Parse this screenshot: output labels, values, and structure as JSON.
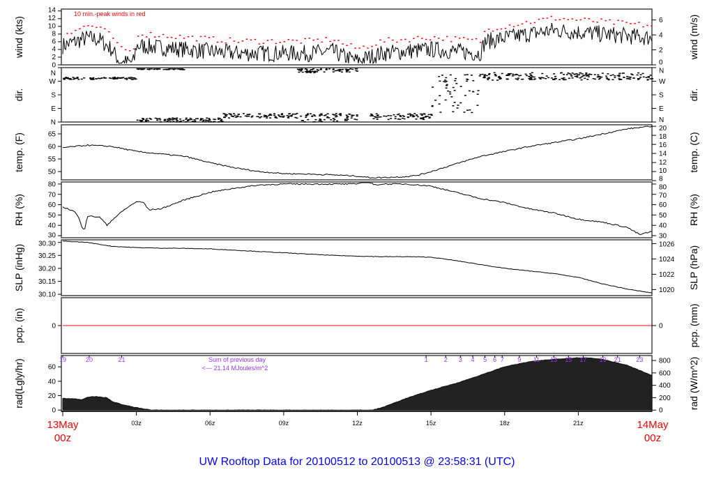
{
  "title": "UW Rooftop Data for 20100512  to  20100513 @ 23:58:31  (UTC)",
  "colors": {
    "line": "#000000",
    "peak": "#ff0000",
    "pcp": "#ff0000",
    "rad_fill": "#222222",
    "purple": "#9933ff",
    "title": "#0000ff",
    "date": "#ff0000"
  },
  "x_axis": {
    "unit": "hours UTC",
    "range": [
      0,
      24
    ],
    "ticks": [
      {
        "h": 3,
        "label": "03z"
      },
      {
        "h": 6,
        "label": "06z"
      },
      {
        "h": 9,
        "label": "09z"
      },
      {
        "h": 12,
        "label": "12z"
      },
      {
        "h": 15,
        "label": "15z"
      },
      {
        "h": 18,
        "label": "18z"
      },
      {
        "h": 21,
        "label": "21z"
      }
    ],
    "start_label": [
      "13May",
      "00z"
    ],
    "end_label": [
      "14May",
      "00z"
    ]
  },
  "chart_data": [
    {
      "id": "wind",
      "type": "line",
      "ylabel": "wind (kts)",
      "ylabel_right": "wind (m/s)",
      "ylim": [
        0,
        14.5
      ],
      "yticks": [
        0,
        2,
        4,
        6,
        8,
        10,
        12,
        14
      ],
      "yticks_right": [
        {
          "v": 0,
          "label": "0"
        },
        {
          "v": 3.89,
          "label": "2"
        },
        {
          "v": 7.78,
          "label": "4"
        },
        {
          "v": 11.66,
          "label": "6"
        }
      ],
      "annotation": "10 min.-peak winds in red",
      "x": [
        0,
        0.5,
        1,
        1.5,
        2,
        2.3,
        2.5,
        2.9,
        3,
        4,
        5,
        6,
        7,
        8,
        9,
        10,
        11,
        11.5,
        12,
        12.5,
        13,
        14,
        15,
        16,
        17,
        17.2,
        18,
        19,
        20,
        21,
        22,
        23,
        24
      ],
      "y": [
        5,
        6,
        7,
        6.5,
        4,
        1,
        0.5,
        0.8,
        5,
        4.5,
        4,
        3.5,
        3,
        3,
        3,
        3,
        3.5,
        2,
        1,
        2,
        3,
        3.5,
        4,
        3.5,
        3,
        6,
        7,
        8,
        9,
        8.5,
        8,
        7.5,
        7
      ],
      "peak_offset_kts": 3
    },
    {
      "id": "dir",
      "type": "scatter",
      "ylabel": "dir.",
      "ylabel_right": "dir.",
      "ylim": [
        0,
        360
      ],
      "yticks": [
        {
          "v": 0,
          "label": "N"
        },
        {
          "v": 90,
          "label": "E"
        },
        {
          "v": 180,
          "label": "S"
        },
        {
          "v": 270,
          "label": "W"
        },
        {
          "v": 360,
          "label": "N"
        }
      ],
      "segments": [
        {
          "from": 0,
          "to": 3,
          "deg": [
            285,
            300
          ]
        },
        {
          "from": 3,
          "to": 5,
          "deg": [
            350,
            360
          ]
        },
        {
          "from": 3,
          "to": 6.5,
          "deg": [
            0,
            30
          ]
        },
        {
          "from": 6.5,
          "to": 9.5,
          "deg": [
            30,
            60
          ]
        },
        {
          "from": 9.5,
          "to": 12,
          "deg": [
            330,
            360
          ]
        },
        {
          "from": 9.5,
          "to": 12,
          "deg": [
            0,
            60
          ]
        },
        {
          "from": 12.5,
          "to": 15,
          "deg": [
            20,
            60
          ]
        },
        {
          "from": 15,
          "to": 17,
          "deg": [
            60,
            340
          ]
        },
        {
          "from": 17,
          "to": 24,
          "deg": [
            280,
            330
          ]
        }
      ]
    },
    {
      "id": "temp",
      "type": "line",
      "ylabel": "temp. (F)",
      "ylabel_right": "temp. (C)",
      "ylim": [
        46.7,
        68.6
      ],
      "yticks": [
        50,
        55,
        60,
        65
      ],
      "yticks_right": [
        {
          "v": 46.4,
          "label": "8"
        },
        {
          "v": 50,
          "label": "10"
        },
        {
          "v": 53.6,
          "label": "12"
        },
        {
          "v": 57.2,
          "label": "14"
        },
        {
          "v": 60.8,
          "label": "16"
        },
        {
          "v": 64.4,
          "label": "18"
        },
        {
          "v": 68,
          "label": "20"
        }
      ],
      "x": [
        0,
        1,
        2,
        3,
        4,
        5,
        6,
        7,
        8,
        9,
        10,
        11,
        12,
        12.5,
        13,
        14,
        14.5,
        15,
        16,
        17,
        18,
        19,
        20,
        21,
        22,
        23,
        24
      ],
      "y": [
        59.5,
        60.5,
        60,
        58,
        57,
        56,
        53.5,
        51.5,
        50,
        49.2,
        49,
        48.7,
        48.2,
        47.6,
        47.6,
        48,
        48.6,
        50,
        53,
        56,
        58,
        60,
        61.5,
        63,
        65,
        67,
        68
      ]
    },
    {
      "id": "rh",
      "type": "line",
      "ylabel": "RH (%)",
      "ylabel_right": "RH (%)",
      "ylim": [
        28,
        82
      ],
      "yticks": [
        30,
        40,
        50,
        60,
        70,
        80
      ],
      "yticks_right": [
        {
          "v": 30,
          "label": "30"
        },
        {
          "v": 40,
          "label": "40"
        },
        {
          "v": 50,
          "label": "50"
        },
        {
          "v": 60,
          "label": "60"
        },
        {
          "v": 70,
          "label": "70"
        },
        {
          "v": 80,
          "label": "80"
        }
      ],
      "x": [
        0,
        0.5,
        0.7,
        0.8,
        0.9,
        1,
        1.5,
        1.7,
        1.8,
        2,
        2.5,
        3,
        3.3,
        3.5,
        4,
        5,
        6,
        7,
        8,
        9,
        10,
        11,
        12,
        12.3,
        12.7,
        13,
        14,
        15,
        16,
        17,
        18,
        19,
        20,
        21,
        22,
        23,
        23.5,
        24
      ],
      "y": [
        58,
        53,
        45,
        37,
        37,
        49,
        48,
        43,
        40,
        45,
        55,
        63,
        62,
        55,
        56,
        65,
        72,
        76,
        79,
        80,
        80,
        80,
        80,
        84,
        79,
        80,
        80,
        78,
        72,
        66,
        62,
        56,
        52,
        46,
        43,
        38,
        31,
        34
      ]
    },
    {
      "id": "slp",
      "type": "line",
      "ylabel": "SLP (inHg)",
      "ylabel_right": "SLP (hPa)",
      "ylim": [
        30.095,
        30.31
      ],
      "yticks": [
        {
          "v": 30.1,
          "label": "30.10"
        },
        {
          "v": 30.15,
          "label": "30.15"
        },
        {
          "v": 30.2,
          "label": "30.20"
        },
        {
          "v": 30.25,
          "label": "30.25"
        },
        {
          "v": 30.3,
          "label": "30.30"
        }
      ],
      "yticks_right": [
        {
          "v": 30.1181,
          "label": "1020"
        },
        {
          "v": 30.1772,
          "label": "1022"
        },
        {
          "v": 30.2362,
          "label": "1024"
        },
        {
          "v": 30.2953,
          "label": "1026"
        }
      ],
      "x": [
        0,
        1,
        2,
        3,
        4,
        5,
        6,
        7,
        8,
        9,
        10,
        11,
        12,
        13,
        14,
        15,
        16,
        17,
        18,
        19,
        20,
        21,
        22,
        23,
        24
      ],
      "y": [
        30.305,
        30.3,
        30.285,
        30.28,
        30.278,
        30.277,
        30.275,
        30.27,
        30.265,
        30.26,
        30.255,
        30.25,
        30.247,
        30.245,
        30.245,
        30.243,
        30.23,
        30.215,
        30.2,
        30.19,
        30.18,
        30.165,
        30.14,
        30.12,
        30.105
      ]
    },
    {
      "id": "pcp",
      "type": "line",
      "ylabel": "pcp. (in)",
      "ylabel_right": "pcp. (mm)",
      "ylim": [
        -1,
        1
      ],
      "yticks": [
        {
          "v": 0,
          "label": "0"
        }
      ],
      "yticks_right": [
        {
          "v": 0,
          "label": "0"
        }
      ],
      "x": [
        0,
        24
      ],
      "y": [
        0,
        0
      ]
    },
    {
      "id": "rad",
      "type": "area",
      "ylabel": "rad(Lgly/hr)",
      "ylabel_right": "rad (W/m^2)",
      "ylim": [
        -20,
        880
      ],
      "yticks": [
        {
          "v": 0,
          "label": "0"
        },
        {
          "v": 232.6,
          "label": "20"
        },
        {
          "v": 465.2,
          "label": "40"
        },
        {
          "v": 697.8,
          "label": "60"
        }
      ],
      "yticks_right": [
        {
          "v": 0,
          "label": "0"
        },
        {
          "v": 200,
          "label": "200"
        },
        {
          "v": 400,
          "label": "400"
        },
        {
          "v": 600,
          "label": "600"
        },
        {
          "v": 800,
          "label": "800"
        }
      ],
      "x": [
        0,
        0.5,
        0.8,
        1,
        1.3,
        1.6,
        1.8,
        2,
        2.5,
        3,
        3.5,
        3.6,
        12.6,
        13,
        14,
        15,
        16,
        17,
        18,
        19,
        20,
        21,
        21.5,
        22,
        23,
        24
      ],
      "y": [
        190,
        180,
        170,
        210,
        220,
        205,
        200,
        140,
        80,
        40,
        8,
        0,
        0,
        40,
        190,
        320,
        430,
        560,
        700,
        780,
        820,
        845,
        840,
        820,
        720,
        560
      ],
      "note": [
        "Sum of previous day",
        "<--- 21.14 MJoules/m^2"
      ],
      "cumulative_markers": [
        {
          "h": 0,
          "label": "19"
        },
        {
          "h": 1.08,
          "label": "20"
        },
        {
          "h": 2.4,
          "label": "21"
        },
        {
          "h": 14.8,
          "label": "1"
        },
        {
          "h": 15.6,
          "label": "2"
        },
        {
          "h": 16.2,
          "label": "3"
        },
        {
          "h": 16.7,
          "label": "4"
        },
        {
          "h": 17.2,
          "label": "5"
        },
        {
          "h": 17.6,
          "label": "6"
        },
        {
          "h": 17.9,
          "label": "7"
        },
        {
          "h": 18.6,
          "label": "9"
        },
        {
          "h": 19.3,
          "label": "11"
        },
        {
          "h": 20.0,
          "label": "13"
        },
        {
          "h": 20.6,
          "label": "15"
        },
        {
          "h": 21.2,
          "label": "17"
        },
        {
          "h": 22.0,
          "label": "19"
        },
        {
          "h": 22.6,
          "label": "21"
        },
        {
          "h": 23.5,
          "label": "23"
        }
      ]
    }
  ]
}
